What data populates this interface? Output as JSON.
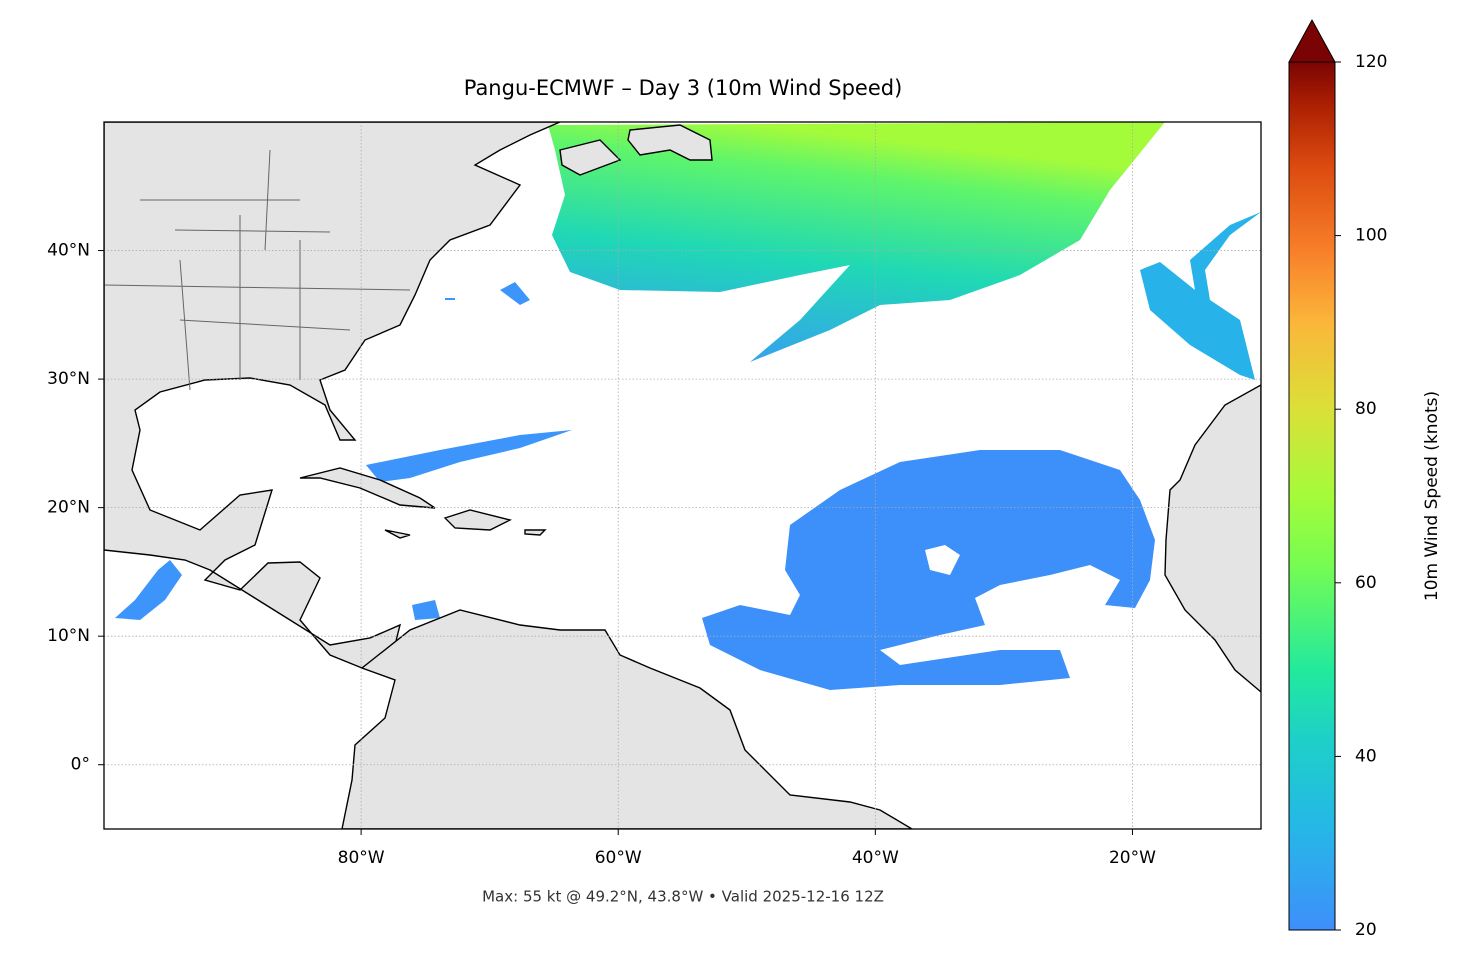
{
  "title": "Pangu-ECMWF – Day 3 (10m Wind Speed)",
  "footer": "Max: 55 kt @ 49.2°N, 43.8°W • Valid 2025-12-16 12Z",
  "map": {
    "xlim": [
      -100,
      -10
    ],
    "ylim": [
      -5,
      50
    ],
    "xticks": [
      {
        "value": -80,
        "label": "80°W"
      },
      {
        "value": -60,
        "label": "60°W"
      },
      {
        "value": -40,
        "label": "40°W"
      },
      {
        "value": -20,
        "label": "20°W"
      }
    ],
    "yticks": [
      {
        "value": 0,
        "label": "0°"
      },
      {
        "value": 10,
        "label": "10°N"
      },
      {
        "value": 20,
        "label": "20°N"
      },
      {
        "value": 30,
        "label": "30°N"
      },
      {
        "value": 40,
        "label": "40°N"
      }
    ],
    "grid": true
  },
  "colorbar": {
    "label": "10m Wind Speed (knots)",
    "lim": [
      20,
      120
    ],
    "ticks": [
      20,
      40,
      60,
      80,
      100,
      120
    ]
  }
}
